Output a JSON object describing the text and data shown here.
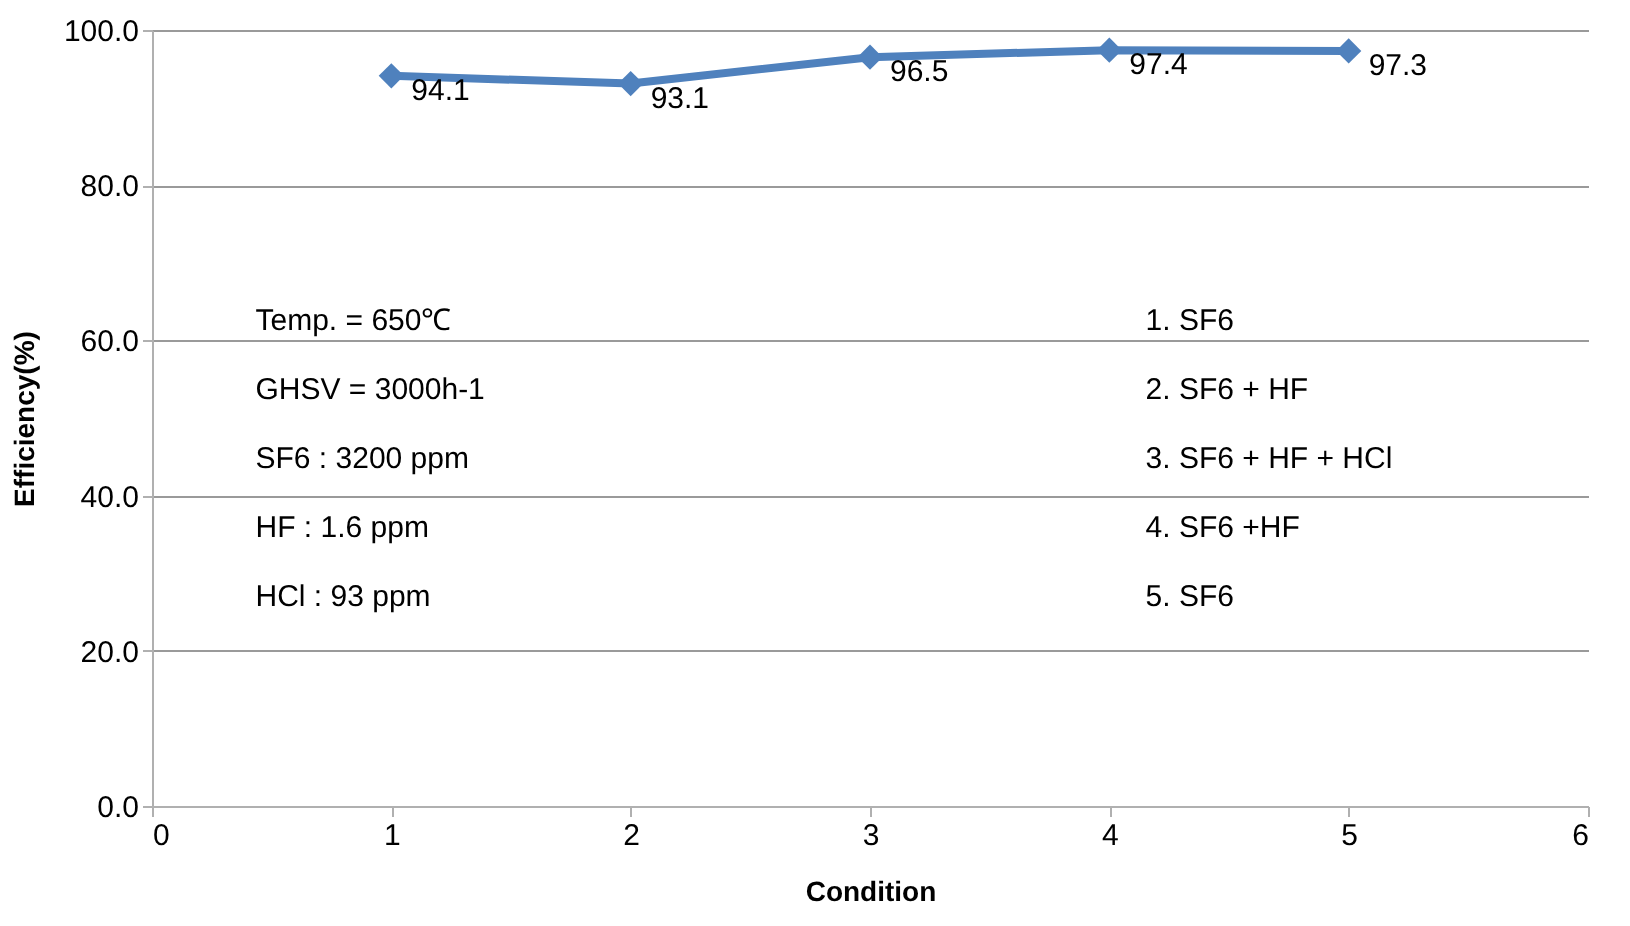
{
  "chart_data": {
    "type": "line",
    "xlabel": "Condition",
    "ylabel": "Efficiency(%)",
    "x": [
      1,
      2,
      3,
      4,
      5
    ],
    "series": [
      {
        "color": "#4f81bd",
        "values": [
          94.1,
          93.1,
          96.5,
          97.4,
          97.3
        ]
      }
    ],
    "xlim": [
      0,
      6
    ],
    "xticks": [
      0,
      1,
      2,
      3,
      4,
      5,
      6
    ],
    "ylim": [
      0,
      100
    ],
    "yticks": [
      {
        "value": 0,
        "label": "0.0"
      },
      {
        "value": 20,
        "label": "20.0"
      },
      {
        "value": 40,
        "label": "40.0"
      },
      {
        "value": 60,
        "label": "60.0"
      },
      {
        "value": 80,
        "label": "80.0"
      },
      {
        "value": 100,
        "label": "100.0"
      }
    ],
    "grid": "y",
    "marker": "diamond",
    "line_style": "solid",
    "data_labels": true,
    "annotations": [
      "Temp. = 650℃",
      "GHSV = 3000h-1",
      "SF6 :  3200 ppm",
      "HF : 1.6 ppm",
      "HCl : 93 ppm",
      "1. SF6",
      "2. SF6 + HF",
      "3. SF6 +  HF + HCl",
      "4. SF6 +HF",
      "5. SF6"
    ]
  }
}
